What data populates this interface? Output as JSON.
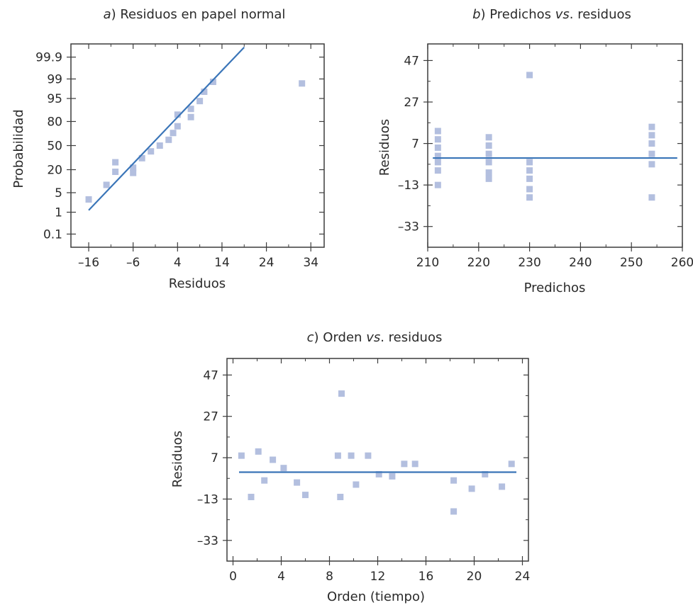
{
  "page": {
    "background": "#ffffff"
  },
  "colors": {
    "marker": "#b3bfdf",
    "line": "#3a75b8",
    "frame": "#3c3c3c",
    "text": "#2a2a2a"
  },
  "chart_data": [
    {
      "id": "a",
      "type": "scatter",
      "title_prefix": "a",
      "title": ") Residuos en papel normal",
      "xlabel": "Residuos",
      "ylabel": "Probabilidad",
      "xlim": [
        -20,
        37
      ],
      "x_ticks": [
        -16,
        -6,
        4,
        14,
        24,
        34
      ],
      "x_tick_labels": [
        "–16",
        "–6",
        "4",
        "14",
        "24",
        "34"
      ],
      "y_scale": "normal-probability",
      "y_ticks": [
        0.1,
        1,
        5,
        20,
        50,
        80,
        95,
        99,
        99.9
      ],
      "y_tick_labels": [
        "0.1",
        "1",
        "5",
        "20",
        "50",
        "80",
        "95",
        "99",
        "99.9"
      ],
      "points": [
        [
          -16,
          3
        ],
        [
          -12,
          8.5
        ],
        [
          -10,
          18
        ],
        [
          -10,
          28
        ],
        [
          -6,
          17
        ],
        [
          -6,
          22
        ],
        [
          -4,
          33
        ],
        [
          -2,
          42
        ],
        [
          0,
          50
        ],
        [
          2,
          58
        ],
        [
          3,
          67
        ],
        [
          4,
          75
        ],
        [
          4,
          86
        ],
        [
          7,
          90
        ],
        [
          7,
          84
        ],
        [
          9,
          94
        ],
        [
          10,
          97
        ],
        [
          12,
          98.7
        ],
        [
          32,
          98.5
        ]
      ],
      "fit_line": [
        [
          -16,
          1.2
        ],
        [
          19,
          99.97
        ]
      ]
    },
    {
      "id": "b",
      "type": "scatter",
      "title_prefix": "b",
      "title": ") Predichos ",
      "title_em": "vs",
      "title_suffix": ". residuos",
      "xlabel": "Predichos",
      "ylabel": "Residuos",
      "xlim": [
        210,
        260
      ],
      "ylim": [
        -43,
        55
      ],
      "x_ticks": [
        210,
        220,
        230,
        240,
        250,
        260
      ],
      "x_tick_labels": [
        "210",
        "220",
        "230",
        "240",
        "250",
        "260"
      ],
      "y_ticks": [
        -33,
        -13,
        7,
        27,
        47
      ],
      "y_tick_labels": [
        "–33",
        "–13",
        "7",
        "27",
        "47"
      ],
      "points": [
        [
          212,
          13
        ],
        [
          212,
          9
        ],
        [
          212,
          5
        ],
        [
          212,
          1
        ],
        [
          212,
          -2
        ],
        [
          212,
          -6
        ],
        [
          212,
          -13
        ],
        [
          222,
          10
        ],
        [
          222,
          6
        ],
        [
          222,
          2
        ],
        [
          222,
          -2
        ],
        [
          222,
          -7
        ],
        [
          222,
          -10
        ],
        [
          230,
          40
        ],
        [
          230,
          -2
        ],
        [
          230,
          -6
        ],
        [
          230,
          -10
        ],
        [
          230,
          -15
        ],
        [
          230,
          -19
        ],
        [
          254,
          15
        ],
        [
          254,
          11
        ],
        [
          254,
          7
        ],
        [
          254,
          2
        ],
        [
          254,
          -3
        ],
        [
          254,
          -19
        ]
      ],
      "fit_line": [
        [
          211,
          0
        ],
        [
          259,
          0
        ]
      ]
    },
    {
      "id": "c",
      "type": "scatter",
      "title_prefix": "c",
      "title": ") Orden ",
      "title_em": "vs",
      "title_suffix": ". residuos",
      "xlabel": "Orden (tiempo)",
      "ylabel": "Residuos",
      "xlim": [
        -0.5,
        24.5
      ],
      "ylim": [
        -43,
        55
      ],
      "x_ticks": [
        0,
        4,
        8,
        12,
        16,
        20,
        24
      ],
      "x_tick_labels": [
        "0",
        "4",
        "8",
        "12",
        "16",
        "20",
        "24"
      ],
      "y_ticks": [
        -33,
        -13,
        7,
        27,
        47
      ],
      "y_tick_labels": [
        "–33",
        "–13",
        "7",
        "27",
        "47"
      ],
      "points": [
        [
          0.7,
          8
        ],
        [
          1.5,
          -12
        ],
        [
          2.1,
          10
        ],
        [
          2.6,
          -4
        ],
        [
          3.3,
          6
        ],
        [
          4.2,
          2
        ],
        [
          5.3,
          -5
        ],
        [
          6,
          -11
        ],
        [
          8.7,
          8
        ],
        [
          9,
          38
        ],
        [
          8.9,
          -12
        ],
        [
          9.8,
          8
        ],
        [
          10.2,
          -6
        ],
        [
          11.2,
          8
        ],
        [
          12.1,
          -1
        ],
        [
          13.2,
          -2
        ],
        [
          14.2,
          4
        ],
        [
          15.1,
          4
        ],
        [
          18.3,
          -4
        ],
        [
          18.3,
          -19
        ],
        [
          19.8,
          -8
        ],
        [
          20.9,
          -1
        ],
        [
          22.3,
          -7
        ],
        [
          23.1,
          4
        ]
      ],
      "fit_line": [
        [
          0.5,
          0
        ],
        [
          23.5,
          0
        ]
      ]
    }
  ]
}
